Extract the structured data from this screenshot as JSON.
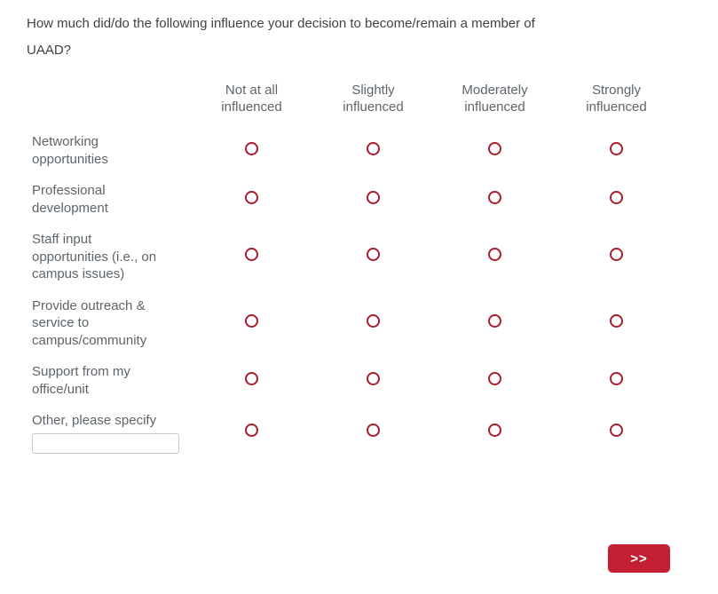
{
  "question": {
    "text": "How much did/do the following influence your decision to become/remain a member of\nUAAD?"
  },
  "matrix": {
    "columns": [
      "Not at all\ninfluenced",
      "Slightly\ninfluenced",
      "Moderately\ninfluenced",
      "Strongly\ninfluenced"
    ],
    "rows": [
      {
        "label": "Networking\nopportunities",
        "has_text_input": false
      },
      {
        "label": "Professional\ndevelopment",
        "has_text_input": false
      },
      {
        "label": "Staff input\nopportunities (i.e., on\ncampus issues)",
        "has_text_input": false
      },
      {
        "label": "Provide outreach &\nservice to\ncampus/community",
        "has_text_input": false
      },
      {
        "label": "Support from my\noffice/unit",
        "has_text_input": false
      },
      {
        "label": "Other, please specify",
        "has_text_input": true,
        "input_value": "",
        "input_placeholder": ""
      }
    ],
    "selected": []
  },
  "navigation": {
    "next_label": ">>"
  },
  "colors": {
    "button_red": "#c22032",
    "radio_border_red": "#a81e2e",
    "question_text": "#3f4347",
    "label_text": "#5d656b",
    "input_border": "#c8c8c8",
    "background": "#ffffff"
  }
}
